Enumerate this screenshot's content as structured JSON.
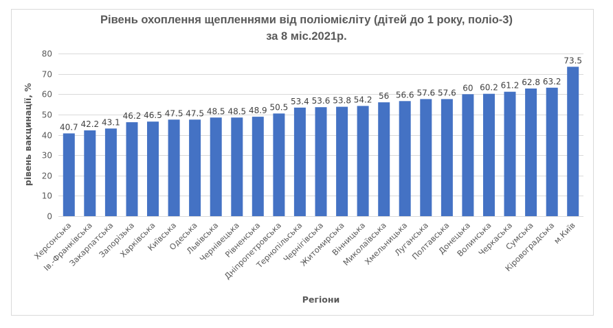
{
  "chart_data": {
    "type": "bar",
    "title": "Рівень охоплення щепленнями від поліомієліту (дітей до 1 року, поліо-3)",
    "subtitle": "за 8 міс.2021р.",
    "xlabel": "Регіони",
    "ylabel": "рівень вакцинації, %",
    "ylim": [
      0,
      80
    ],
    "yticks": [
      0,
      10,
      20,
      30,
      40,
      50,
      60,
      70,
      80
    ],
    "grid": true,
    "bar_color": "#4472C4",
    "categories": [
      "Херсонська",
      "Ів.-Франківська",
      "Закарпатська",
      "Запорізька",
      "Харківська",
      "Київська",
      "Одеська",
      "Львівська",
      "Чернівецька",
      "Рівненська",
      "Дніпропетровська",
      "Тернопільська",
      "Чернігівська",
      "Житомирська",
      "Вінницька",
      "Миколаївська",
      "Хмельницька",
      "Луганська",
      "Полтавська",
      "Донецька",
      "Волинська",
      "Черкаська",
      "Сумська",
      "Кіровоградська",
      "м.Київ"
    ],
    "values": [
      40.7,
      42.2,
      43.1,
      46.2,
      46.5,
      47.5,
      47.5,
      48.5,
      48.5,
      48.9,
      50.5,
      53.4,
      53.6,
      53.8,
      54.2,
      56,
      56.6,
      57.6,
      57.6,
      60,
      60.2,
      61.2,
      62.8,
      63.2,
      73.5
    ]
  }
}
